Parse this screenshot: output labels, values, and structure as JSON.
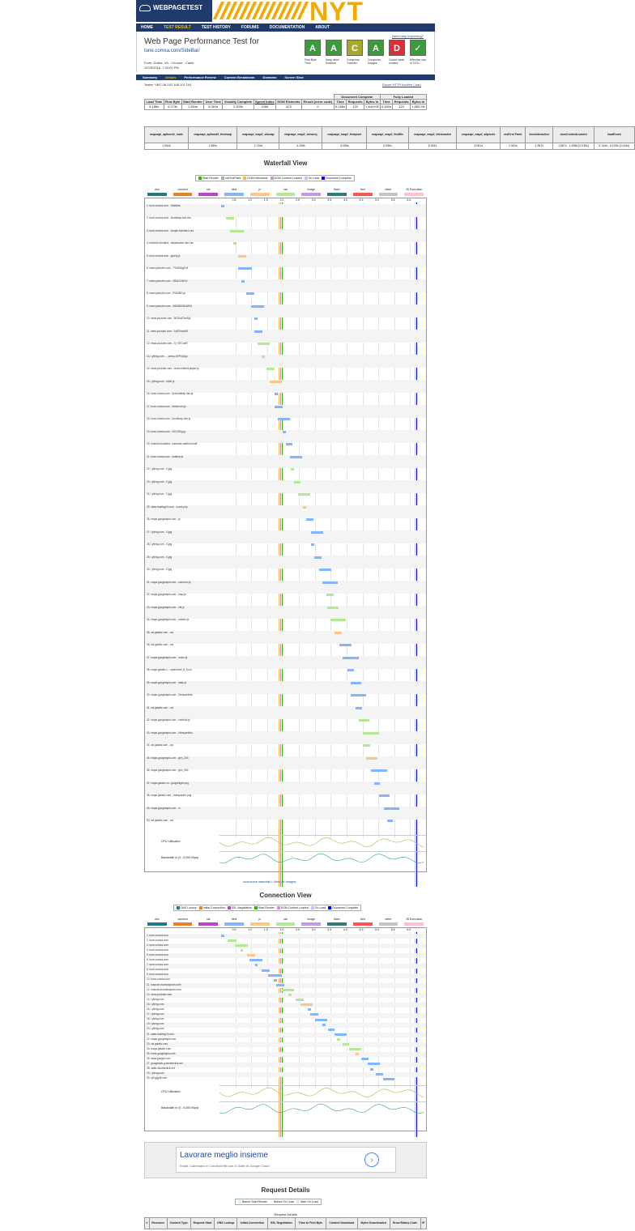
{
  "header": {
    "logo_text": "WEBPAGETEST",
    "banner_text": "NYT"
  },
  "nav": {
    "items": [
      "HOME",
      "TEST RESULT",
      "TEST HISTORY",
      "FORUMS",
      "DOCUMENTATION",
      "ABOUT"
    ],
    "active": 1
  },
  "info": {
    "title": "Web Page Performance Test for",
    "url": "tune.comxa.com/SideBar/",
    "from": "From: Dulles, VA - Chrome - Cable",
    "date": "10/25/2016, 7:33:00 PM",
    "help": "Need help improving?"
  },
  "grades": [
    {
      "letter": "A",
      "label": "First Byte Time",
      "color": "#3d9a3d"
    },
    {
      "letter": "A",
      "label": "Keep-alive Enabled",
      "color": "#3d9a3d"
    },
    {
      "letter": "C",
      "label": "Compress Transfer",
      "color": "#a8a82a"
    },
    {
      "letter": "A",
      "label": "Compress Images",
      "color": "#3d9a3d"
    },
    {
      "letter": "D",
      "label": "Cache static content",
      "color": "#d8313c"
    },
    {
      "letter": "✓",
      "label": "Effective use of CDN",
      "color": "#3d9a3d"
    }
  ],
  "subnav": {
    "items": [
      "Summary",
      "Details",
      "Performance Review",
      "Content Breakdown",
      "Domains",
      "Screen Shot"
    ],
    "active": 1
  },
  "tester": "Tester: VM7-08-192.168.101.191",
  "export": "Export HTTP Archive (.har)",
  "summary": {
    "group_doc": "Document Complete",
    "group_full": "Fully Loaded",
    "headers": [
      "Load Time",
      "First Byte",
      "Start Render",
      "User Time",
      "Visually Complete",
      "Speed Index",
      "DOM Elements",
      "Result (error code)",
      "Time",
      "Requests",
      "Bytes In",
      "Time",
      "Requests",
      "Bytes In"
    ],
    "values": [
      "6.186s",
      "0.373s",
      "1.964s",
      "5.061s",
      "2.300s",
      "2266",
      "423",
      "0",
      "6.186s",
      "120",
      "1,844 KB",
      "6.460s",
      "122",
      "1,880 KB"
    ]
  },
  "timings": {
    "headers": [
      "mapsapi_apiboot2_main",
      "mapsapi_apiboot3_firstmap",
      "mapsapi_map2_vismap",
      "mapsapi_map2_viewreq",
      "mapsapi_map2_firstpixel",
      "mapsapi_map2_firstfile",
      "mapsapi_map2_tilesloaded",
      "mapsapi_map2_allpixels",
      "msFirst Paint",
      "domInteractive",
      "domContentLoaded",
      "loadEvent"
    ],
    "values": [
      "1.964s",
      "1.989s",
      "2.716s",
      "4.298s",
      "5.055s",
      "5.056s",
      "5.061s",
      "5.061s",
      "1.962s",
      "1.867s",
      "1.867s - 1.908s (0.038s)",
      "6.144s - 6.159s (0.015s)"
    ]
  },
  "waterfall": {
    "title": "Waterfall View",
    "legend": [
      "Start Render",
      "msFirstPaint",
      "DOM Interactive",
      "DOM Content Loaded",
      "On Load",
      "Document Complete"
    ],
    "legend_colors": [
      "#28bc00",
      "#8fbc8f",
      "#fcb940",
      "#d888df",
      "#c0c0ff",
      "#0000ff"
    ],
    "types": [
      "dns",
      "connect",
      "ssl",
      "html",
      "js",
      "css",
      "image",
      "flash",
      "font",
      "other",
      "JS Execution"
    ],
    "type_colors": [
      "#1f7c83",
      "#e58226",
      "#c141cd",
      "#82b5fc",
      "#fec584",
      "#b2ea94",
      "#c49ae8",
      "#2d7b7b",
      "#ff5252",
      "#c4c4c4",
      "#ffc0cb"
    ],
    "ticks": [
      "0.5",
      "1.0",
      "1.5",
      "2.0",
      "2.5",
      "3.0",
      "3.5",
      "4.0",
      "4.5",
      "5.0",
      "5.5",
      "6.0"
    ],
    "rows": [
      "1. tune.comxa.com - SideBar/",
      "2. tune.comxa.com - bootstrap.min.css",
      "3. tune.comxa.com - simple-sidebar1.css",
      "4. maxcdn.bootstra...ntawesome.min.css",
      "5. tune.comxa.com - jquery.js",
      "6. www.youtube.com - 7Yk4NAgCx4",
      "7. www.youtube.com - VBcE3JvtYU",
      "8. www.youtube.com - IFkIOBCcp",
      "9. www.youtube.com - 0ADBBXB4UEM",
      "10. www.youtube.com - BGZwE2zcMp",
      "11. www.youtube.com - 1ytEXwpi58",
      "12. www.youtube.com - 5_HiTCn4R",
      "13. i.ytimg.com - ...webp-xiFPxtZlgo",
      "14. www.youtube.com - www-embed-player.js",
      "15. i.ytimg.com - 0ds0.js",
      "16. tune.comxa.com - fy.bootstrap.min.js",
      "17. tune.comxa.com - tether.min.js",
      "18. tune.comxa.com - bootstrap.min.js",
      "19. tune.comxa.com - 20X150.jpg",
      "20. maxcdn.bootstra...wesome-webfont.woff",
      "21. tune.comxa.com - sidebar.js",
      "22. i.ytimg.com - 0.jpg",
      "23. i.ytimg.com - 0.jpg",
      "24. i.ytimg.com - 0.jpg",
      "25. stats.hosting24.com - count.php",
      "26. maps.googleapis.com - js",
      "27. i.ytimg.com - 0.jpg",
      "28. i.ytimg.com - 0.jpg",
      "29. i.ytimg.com - 0.jpg",
      "30. i.ytimg.com - 0.jpg",
      "31. maps.googleapis.com - common.js",
      "32. maps.googleapis.com - map.js",
      "33. maps.googleapis.com - util.js",
      "34. maps.googleapis.com - marker.js",
      "35. csi.gstatic.com - csi",
      "36. csi.gstatic.com - csi",
      "37. maps.googleapis.com - onion.js",
      "38. maps.gstatic.c... openhand_8_8.cur",
      "39. maps.googleapis.com - stats.js",
      "40. maps.googleapis.com - ViewportInfo",
      "41. csi.gstatic.com - csi",
      "42. maps.googleapis.com - controls.js",
      "43. maps.googleapis.com - ViewportInfo",
      "44. csi.gstatic.com - csi",
      "45. maps.googleapis.com - gen_204",
      "46. maps.googleapis.com - gen_204",
      "47. maps.gstatic.co...googlelight-png",
      "48. maps.gstatic.com - transparent.png",
      "49. maps.googleapis.com - vt",
      "50. csi.gstatic.com - csi"
    ],
    "cpu_label": "CPU Utilization",
    "bw_label": "Bandwidth In (0 - 5,000 Kbps)",
    "links": "customize waterfall • View all Images"
  },
  "connection": {
    "title": "Connection View",
    "legend": [
      "DNS Lookup",
      "Initial Connection",
      "SSL Negotiation",
      "Start Render",
      "DOM Content Loaded",
      "On Load",
      "Document Complete"
    ],
    "legend_colors": [
      "#1f7c83",
      "#e58226",
      "#c141cd",
      "#28bc00",
      "#d888df",
      "#c0c0ff",
      "#0000ff"
    ],
    "rows": [
      "1. tune.comxa.com",
      "2. tune.comxa.com",
      "3. tune.comxa.com",
      "4. tune.comxa.com",
      "5. tune.comxa.com",
      "6. tune.comxa.com",
      "7. tune.comxa.com",
      "8. tune.comxa.com",
      "9. tune.comxa.com",
      "10. tune.comxa.com",
      "11. maxcdn.bootstrapcdn.com",
      "12. maxcdn.bootstrapcdn.com",
      "13. www.youtube.com",
      "14. i.ytimg.com",
      "15. i.ytimg.com",
      "16. i.ytimg.com",
      "17. i.ytimg.com",
      "18. i.ytimg.com",
      "19. i.ytimg.com",
      "20. i.ytimg.com",
      "21. stats.hosting24.com",
      "22. maps.googleapis.com",
      "23. csi.gstatic.com",
      "24. maps.gstatic.com",
      "25. fonts.googleapis.com",
      "26. www.google.com",
      "27. googleads.g.doubleclick.net",
      "28. static.doubleclick.net",
      "29. i.ytimg.com",
      "30. yt3.ggpht.com"
    ]
  },
  "ad": {
    "title": "Lavorare meglio insieme",
    "subtitle": "Email, Calendario e Condividi file con G Suite di Google Cloud",
    "arrow": "›"
  },
  "request_details": {
    "title": "Request Details",
    "legend": [
      "Before Start Render",
      "Before On Load",
      "After On Load"
    ],
    "legend_colors": [
      "#d1ffd1",
      "#ffffe0",
      "#e6e6fa"
    ],
    "subtitle": "Request Details",
    "headers": [
      "#",
      "Resource",
      "Content Type",
      "Request Start",
      "DNS Lookup",
      "Initial Connection",
      "SSL Negotiation",
      "Time to First Byte",
      "Content Download",
      "Bytes Downloaded",
      "Error/Status Code",
      "IP"
    ]
  }
}
